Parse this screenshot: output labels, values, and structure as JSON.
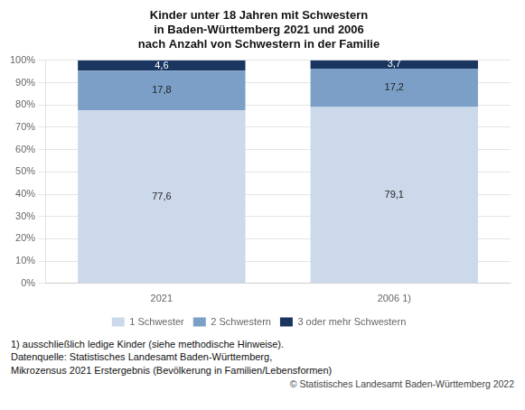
{
  "chart_data": {
    "type": "bar",
    "title": "Kinder unter 18 Jahren mit Schwestern\nin Baden-Württemberg 2021 und 2006\nnach Anzahl von Schwestern in der Familie",
    "categories": [
      "2021",
      "2006 1)"
    ],
    "series": [
      {
        "name": "1 Schwester",
        "color": "#ccd9eb",
        "values": [
          77.6,
          79.1
        ],
        "value_labels": [
          "77,6",
          "79,1"
        ]
      },
      {
        "name": "2 Schwestern",
        "color": "#7b9fc7",
        "values": [
          17.8,
          17.2
        ],
        "value_labels": [
          "17,8",
          "17,2"
        ]
      },
      {
        "name": "3 oder mehr Schwestern",
        "color": "#1a3560",
        "values": [
          4.6,
          3.7
        ],
        "value_labels": [
          "4,6",
          "3,7"
        ]
      }
    ],
    "stacked": true,
    "data_labels": true,
    "ylim": [
      0,
      100
    ],
    "yticks": [
      {
        "value": 0,
        "label": "0%"
      },
      {
        "value": 10,
        "label": "10%"
      },
      {
        "value": 20,
        "label": "20%"
      },
      {
        "value": 30,
        "label": "30%"
      },
      {
        "value": 40,
        "label": "40%"
      },
      {
        "value": 50,
        "label": "50%"
      },
      {
        "value": 60,
        "label": "60%"
      },
      {
        "value": 70,
        "label": "70%"
      },
      {
        "value": 80,
        "label": "80%"
      },
      {
        "value": 90,
        "label": "90%"
      },
      {
        "value": 100,
        "label": "100%"
      }
    ],
    "grid": true,
    "legend": "bottom",
    "footnotes": [
      "1) ausschließlich ledige Kinder (siehe methodische Hinweise).",
      "Datenquelle: Statistisches Landesamt Baden-Württemberg,",
      "Mikrozensus 2021 Erstergebnis (Bevölkerung in Familien/Lebensformen)"
    ],
    "copyright": "© Statistisches Landesamt Baden-Württemberg 2022"
  }
}
